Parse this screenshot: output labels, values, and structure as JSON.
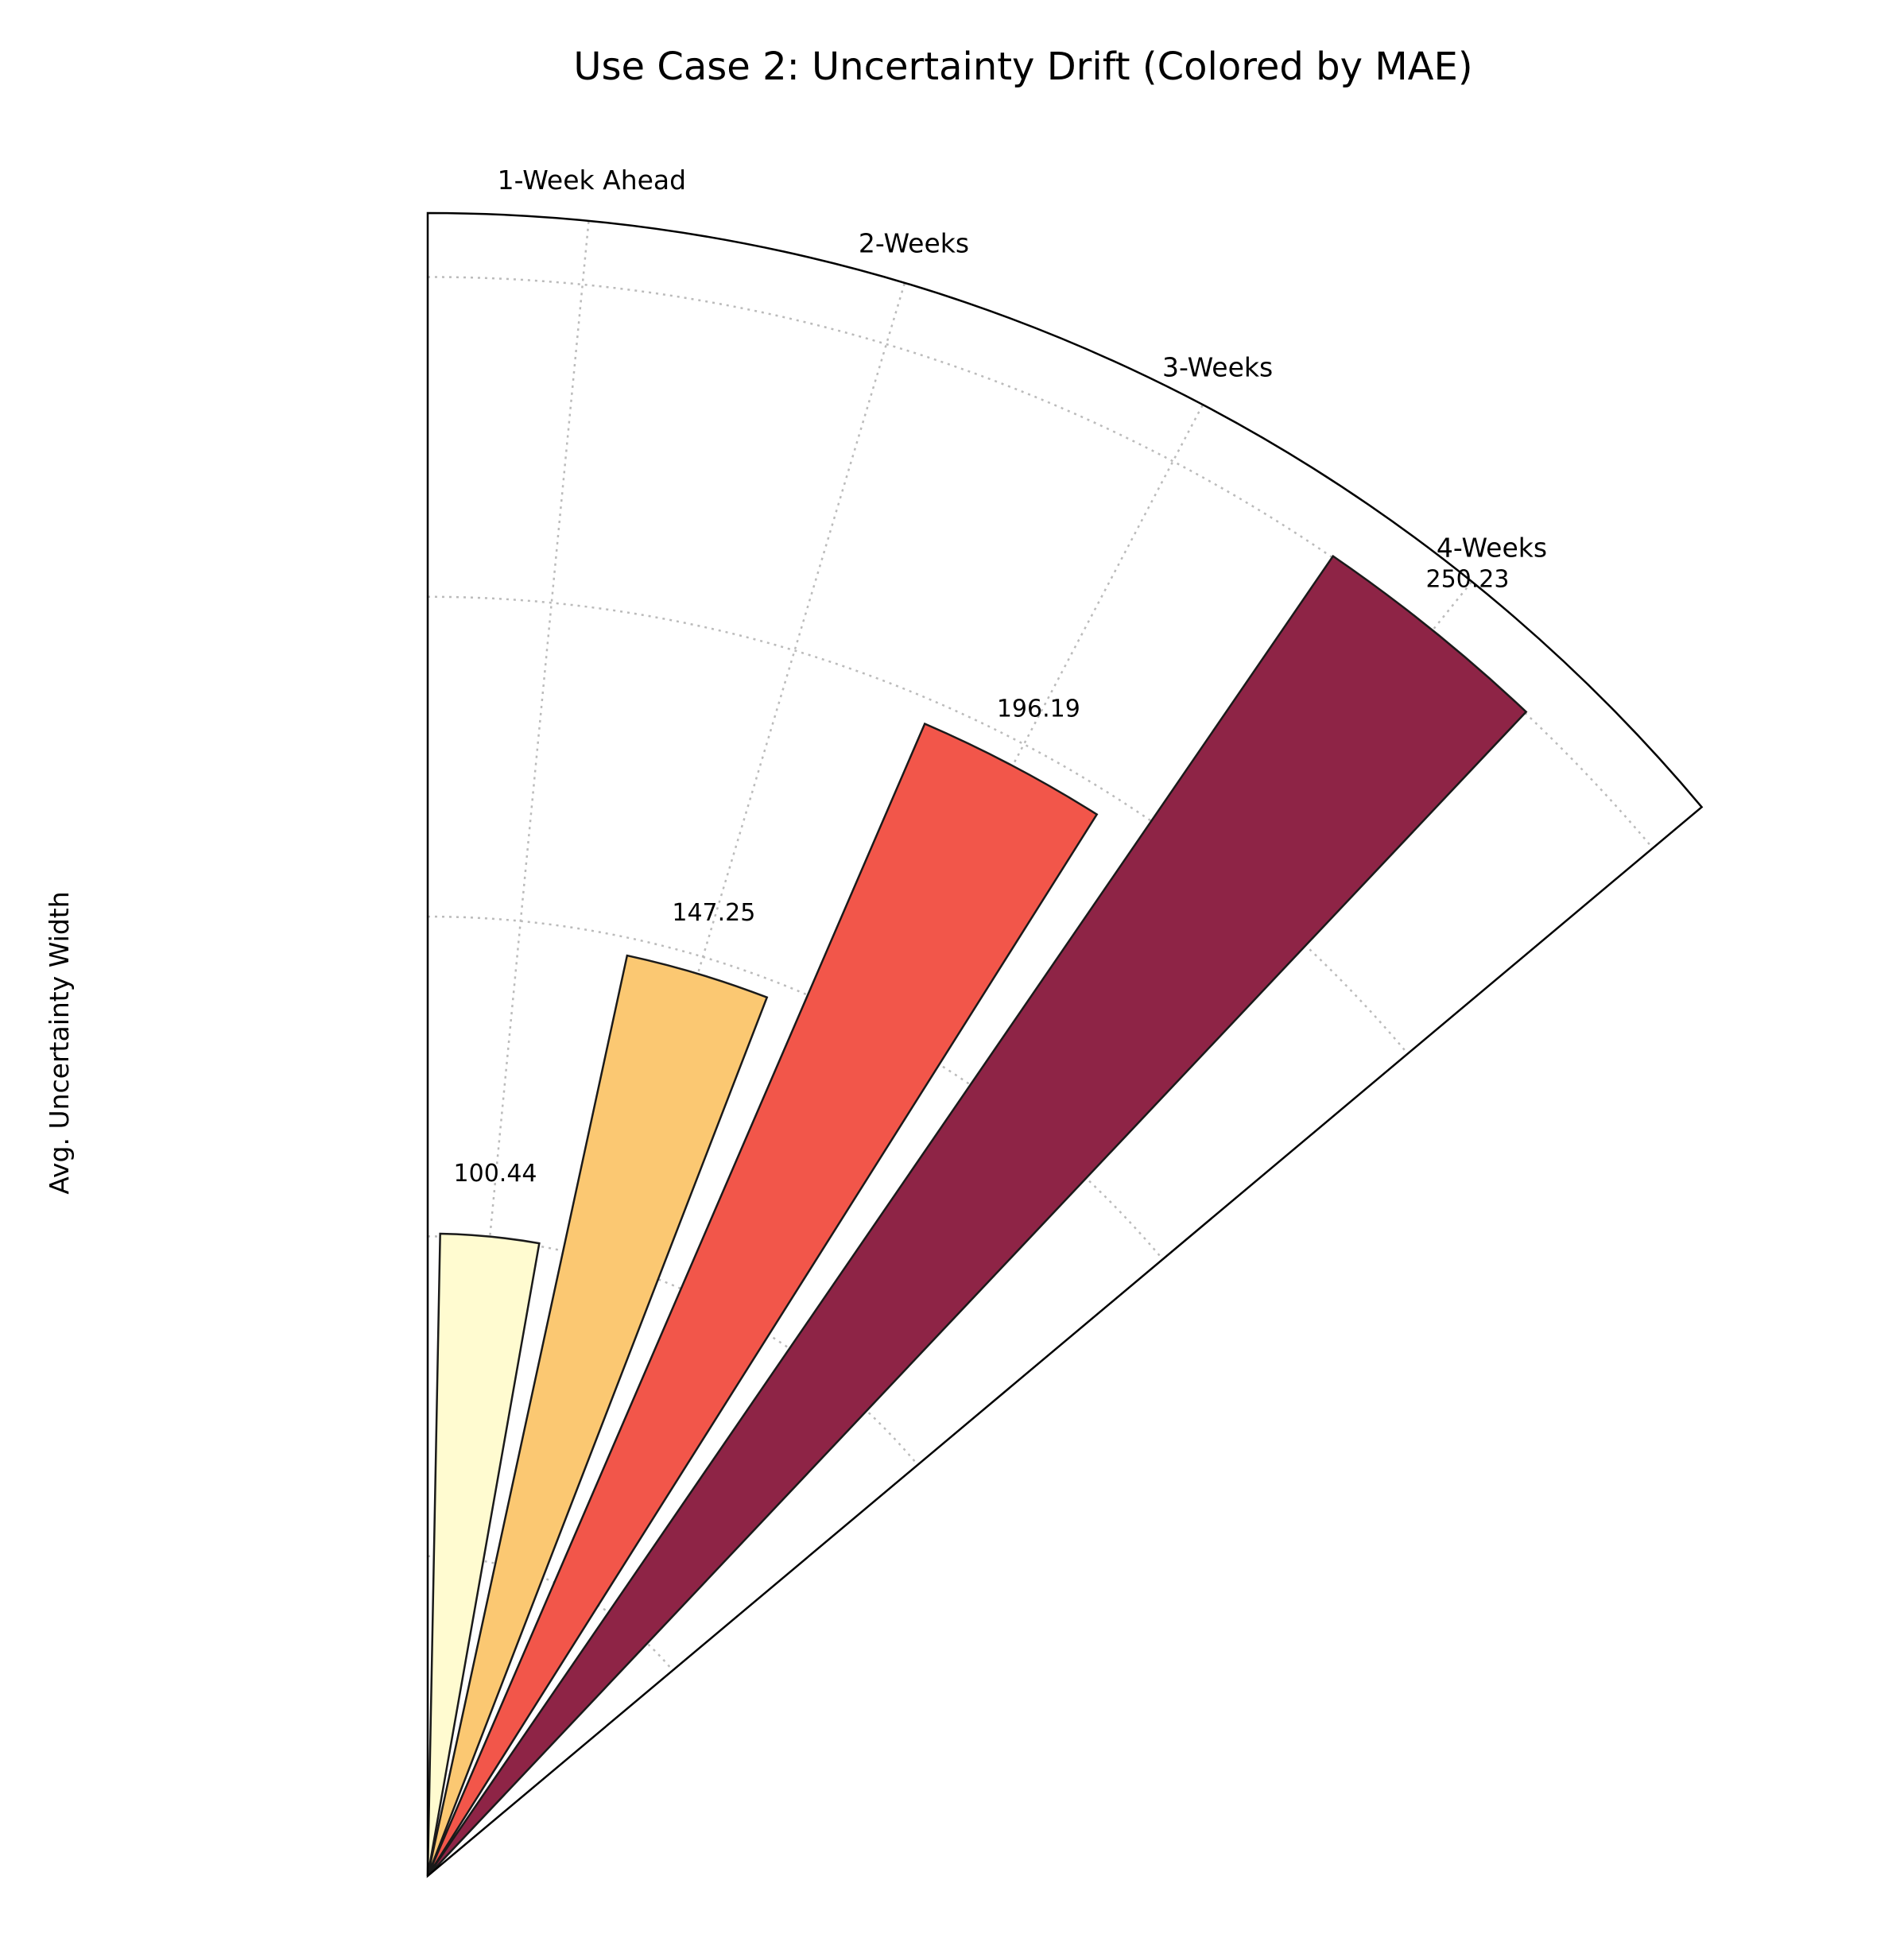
{
  "chart_data": {
    "type": "bar",
    "polar": true,
    "title": "Use Case 2: Uncertainty Drift (Colored by MAE)",
    "xlabel": "",
    "ylabel": "Avg. Uncertainty Width",
    "categories": [
      "1-Week Ahead",
      "2-Weeks",
      "3-Weeks",
      "4-Weeks"
    ],
    "values": [
      100.44,
      147.25,
      196.19,
      250.23
    ],
    "value_labels": [
      "100.44",
      "147.25",
      "196.19",
      "250.23"
    ],
    "bar_colors": [
      "#fffbd0",
      "#fbc872",
      "#f2564a",
      "#8e2446"
    ],
    "bar_edge_color": "#1a1a1a",
    "color_encoding": "MAE",
    "theta_range_deg": [
      0,
      50
    ],
    "rlim": [
      0,
      260
    ],
    "grid": true
  }
}
